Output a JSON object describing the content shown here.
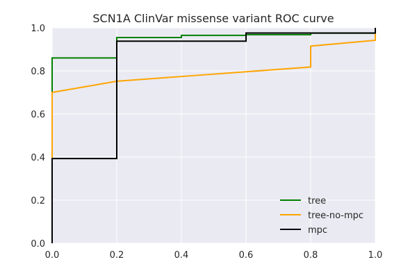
{
  "chart_data": {
    "type": "line",
    "title": "SCN1A ClinVar missense variant ROC curve",
    "xlabel": "",
    "ylabel": "",
    "xlim": [
      0.0,
      1.0
    ],
    "ylim": [
      0.0,
      1.0
    ],
    "xticks": [
      "0.0",
      "0.2",
      "0.4",
      "0.6",
      "0.8",
      "1.0"
    ],
    "yticks": [
      "0.0",
      "0.2",
      "0.4",
      "0.6",
      "0.8",
      "1.0"
    ],
    "grid": true,
    "legend_position": "lower-right",
    "background": "#eaeaf2",
    "series": [
      {
        "name": "tree",
        "color": "#008000",
        "points": [
          [
            0.0,
            0.0
          ],
          [
            0.0,
            0.86
          ],
          [
            0.2,
            0.86
          ],
          [
            0.2,
            0.955
          ],
          [
            0.4,
            0.955
          ],
          [
            0.4,
            0.965
          ],
          [
            0.6,
            0.965
          ],
          [
            0.6,
            0.968
          ],
          [
            0.8,
            0.968
          ],
          [
            0.8,
            0.975
          ],
          [
            1.0,
            0.975
          ],
          [
            1.0,
            1.0
          ]
        ]
      },
      {
        "name": "tree-no-mpc",
        "color": "#ffa500",
        "points": [
          [
            0.0,
            0.0
          ],
          [
            0.0,
            0.7
          ],
          [
            0.2,
            0.752
          ],
          [
            0.4,
            0.774
          ],
          [
            0.6,
            0.796
          ],
          [
            0.8,
            0.818
          ],
          [
            0.8,
            0.915
          ],
          [
            1.0,
            0.942
          ],
          [
            1.0,
            1.0
          ]
        ]
      },
      {
        "name": "mpc",
        "color": "#000000",
        "points": [
          [
            0.0,
            0.0
          ],
          [
            0.0,
            0.393
          ],
          [
            0.2,
            0.393
          ],
          [
            0.2,
            0.938
          ],
          [
            0.6,
            0.938
          ],
          [
            0.6,
            0.976
          ],
          [
            1.0,
            0.976
          ],
          [
            1.0,
            1.0
          ]
        ]
      }
    ]
  }
}
